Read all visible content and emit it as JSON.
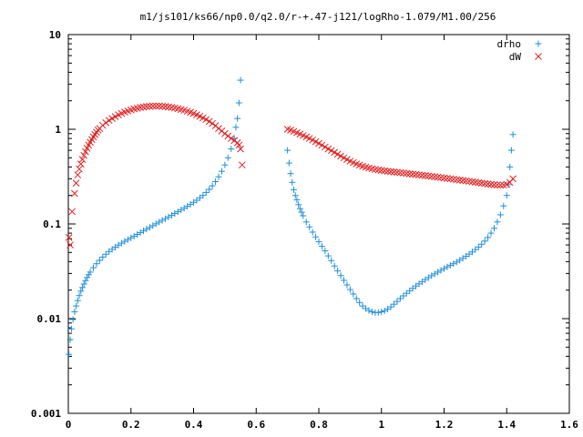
{
  "chart_data": {
    "type": "scatter",
    "title": "m1/js101/ks66/np0.0/q2.0/r-+.47-j121/logRho-1.079/M1.00/256",
    "xlabel": "",
    "ylabel": "",
    "xlim": [
      0,
      1.6
    ],
    "ylim": [
      0.001,
      10
    ],
    "y_scale": "log",
    "grid": false,
    "legend_position": "top-right",
    "x_ticks": [
      "0",
      "0.2",
      "0.4",
      "0.6",
      "0.8",
      "1",
      "1.2",
      "1.4",
      "1.6"
    ],
    "x_tick_values": [
      0,
      0.2,
      0.4,
      0.6,
      0.8,
      1.0,
      1.2,
      1.4,
      1.6
    ],
    "y_ticks": [
      "0.001",
      "0.01",
      "0.1",
      "1",
      "10"
    ],
    "y_tick_values": [
      0.001,
      0.01,
      0.1,
      1,
      10
    ],
    "series": [
      {
        "name": "drho",
        "marker": "plus",
        "color": "#1f8fd9",
        "points": [
          [
            0.002,
            0.0042
          ],
          [
            0.006,
            0.006
          ],
          [
            0.01,
            0.0078
          ],
          [
            0.015,
            0.0098
          ],
          [
            0.02,
            0.0118
          ],
          [
            0.025,
            0.0136
          ],
          [
            0.03,
            0.0155
          ],
          [
            0.035,
            0.0175
          ],
          [
            0.04,
            0.0195
          ],
          [
            0.045,
            0.0213
          ],
          [
            0.05,
            0.0232
          ],
          [
            0.055,
            0.0252
          ],
          [
            0.06,
            0.0272
          ],
          [
            0.065,
            0.0291
          ],
          [
            0.07,
            0.031
          ],
          [
            0.08,
            0.0345
          ],
          [
            0.09,
            0.038
          ],
          [
            0.1,
            0.0413
          ],
          [
            0.11,
            0.0447
          ],
          [
            0.12,
            0.0479
          ],
          [
            0.13,
            0.0511
          ],
          [
            0.14,
            0.054
          ],
          [
            0.15,
            0.0569
          ],
          [
            0.16,
            0.0598
          ],
          [
            0.17,
            0.0627
          ],
          [
            0.18,
            0.0655
          ],
          [
            0.19,
            0.0683
          ],
          [
            0.2,
            0.0713
          ],
          [
            0.21,
            0.0743
          ],
          [
            0.22,
            0.0775
          ],
          [
            0.23,
            0.0809
          ],
          [
            0.24,
            0.0845
          ],
          [
            0.25,
            0.0882
          ],
          [
            0.26,
            0.092
          ],
          [
            0.27,
            0.0961
          ],
          [
            0.28,
            0.1003
          ],
          [
            0.29,
            0.1046
          ],
          [
            0.3,
            0.1091
          ],
          [
            0.31,
            0.1138
          ],
          [
            0.32,
            0.1186
          ],
          [
            0.33,
            0.1236
          ],
          [
            0.34,
            0.1289
          ],
          [
            0.35,
            0.1346
          ],
          [
            0.36,
            0.1406
          ],
          [
            0.37,
            0.147
          ],
          [
            0.38,
            0.1536
          ],
          [
            0.39,
            0.1608
          ],
          [
            0.4,
            0.169
          ],
          [
            0.41,
            0.178
          ],
          [
            0.42,
            0.189
          ],
          [
            0.43,
            0.2
          ],
          [
            0.44,
            0.215
          ],
          [
            0.45,
            0.232
          ],
          [
            0.46,
            0.253
          ],
          [
            0.47,
            0.28
          ],
          [
            0.48,
            0.315
          ],
          [
            0.49,
            0.36
          ],
          [
            0.5,
            0.42
          ],
          [
            0.51,
            0.5
          ],
          [
            0.52,
            0.62
          ],
          [
            0.53,
            0.8
          ],
          [
            0.535,
            1.05
          ],
          [
            0.54,
            1.3
          ],
          [
            0.545,
            1.9
          ],
          [
            0.55,
            3.3
          ],
          [
            0.7,
            0.6
          ],
          [
            0.705,
            0.44
          ],
          [
            0.71,
            0.34
          ],
          [
            0.715,
            0.275
          ],
          [
            0.72,
            0.23
          ],
          [
            0.725,
            0.2
          ],
          [
            0.73,
            0.18
          ],
          [
            0.735,
            0.16
          ],
          [
            0.74,
            0.145
          ],
          [
            0.745,
            0.133
          ],
          [
            0.75,
            0.122
          ],
          [
            0.76,
            0.105
          ],
          [
            0.77,
            0.093
          ],
          [
            0.78,
            0.082
          ],
          [
            0.79,
            0.073
          ],
          [
            0.8,
            0.065
          ],
          [
            0.81,
            0.058
          ],
          [
            0.82,
            0.052
          ],
          [
            0.83,
            0.046
          ],
          [
            0.84,
            0.041
          ],
          [
            0.85,
            0.036
          ],
          [
            0.86,
            0.032
          ],
          [
            0.87,
            0.0285
          ],
          [
            0.88,
            0.0254
          ],
          [
            0.89,
            0.0227
          ],
          [
            0.9,
            0.0203
          ],
          [
            0.91,
            0.0182
          ],
          [
            0.92,
            0.0163
          ],
          [
            0.93,
            0.0148
          ],
          [
            0.94,
            0.0136
          ],
          [
            0.95,
            0.0128
          ],
          [
            0.96,
            0.0122
          ],
          [
            0.97,
            0.0118
          ],
          [
            0.98,
            0.0116
          ],
          [
            0.99,
            0.0116
          ],
          [
            1.0,
            0.0118
          ],
          [
            1.01,
            0.0121
          ],
          [
            1.02,
            0.0126
          ],
          [
            1.03,
            0.0133
          ],
          [
            1.04,
            0.0142
          ],
          [
            1.05,
            0.0152
          ],
          [
            1.06,
            0.0163
          ],
          [
            1.07,
            0.0174
          ],
          [
            1.08,
            0.0185
          ],
          [
            1.09,
            0.0197
          ],
          [
            1.1,
            0.0209
          ],
          [
            1.11,
            0.0221
          ],
          [
            1.12,
            0.0233
          ],
          [
            1.13,
            0.0245
          ],
          [
            1.14,
            0.0258
          ],
          [
            1.15,
            0.0271
          ],
          [
            1.16,
            0.0284
          ],
          [
            1.17,
            0.0297
          ],
          [
            1.18,
            0.031
          ],
          [
            1.19,
            0.0324
          ],
          [
            1.2,
            0.0338
          ],
          [
            1.21,
            0.0352
          ],
          [
            1.22,
            0.0366
          ],
          [
            1.23,
            0.038
          ],
          [
            1.24,
            0.0396
          ],
          [
            1.25,
            0.0414
          ],
          [
            1.26,
            0.0434
          ],
          [
            1.27,
            0.0456
          ],
          [
            1.28,
            0.048
          ],
          [
            1.29,
            0.0506
          ],
          [
            1.3,
            0.0537
          ],
          [
            1.31,
            0.057
          ],
          [
            1.32,
            0.061
          ],
          [
            1.33,
            0.066
          ],
          [
            1.34,
            0.072
          ],
          [
            1.35,
            0.08
          ],
          [
            1.36,
            0.09
          ],
          [
            1.37,
            0.105
          ],
          [
            1.38,
            0.125
          ],
          [
            1.39,
            0.155
          ],
          [
            1.4,
            0.2
          ],
          [
            1.405,
            0.26
          ],
          [
            1.41,
            0.4
          ],
          [
            1.415,
            0.6
          ],
          [
            1.42,
            0.88
          ]
        ]
      },
      {
        "name": "dW",
        "marker": "cross",
        "color": "#e02020",
        "points": [
          [
            0.002,
            0.072
          ],
          [
            0.006,
            0.06
          ],
          [
            0.012,
            0.135
          ],
          [
            0.02,
            0.21
          ],
          [
            0.025,
            0.27
          ],
          [
            0.03,
            0.33
          ],
          [
            0.035,
            0.38
          ],
          [
            0.04,
            0.43
          ],
          [
            0.045,
            0.48
          ],
          [
            0.05,
            0.53
          ],
          [
            0.055,
            0.58
          ],
          [
            0.06,
            0.63
          ],
          [
            0.065,
            0.68
          ],
          [
            0.07,
            0.73
          ],
          [
            0.075,
            0.78
          ],
          [
            0.08,
            0.83
          ],
          [
            0.085,
            0.88
          ],
          [
            0.09,
            0.93
          ],
          [
            0.095,
            0.98
          ],
          [
            0.1,
            1.02
          ],
          [
            0.11,
            1.1
          ],
          [
            0.12,
            1.17
          ],
          [
            0.13,
            1.24
          ],
          [
            0.14,
            1.3
          ],
          [
            0.15,
            1.36
          ],
          [
            0.16,
            1.42
          ],
          [
            0.17,
            1.47
          ],
          [
            0.18,
            1.52
          ],
          [
            0.19,
            1.56
          ],
          [
            0.2,
            1.6
          ],
          [
            0.21,
            1.64
          ],
          [
            0.22,
            1.67
          ],
          [
            0.23,
            1.7
          ],
          [
            0.24,
            1.72
          ],
          [
            0.25,
            1.74
          ],
          [
            0.26,
            1.75
          ],
          [
            0.27,
            1.76
          ],
          [
            0.28,
            1.76
          ],
          [
            0.29,
            1.76
          ],
          [
            0.3,
            1.75
          ],
          [
            0.31,
            1.74
          ],
          [
            0.32,
            1.72
          ],
          [
            0.33,
            1.7
          ],
          [
            0.34,
            1.68
          ],
          [
            0.35,
            1.65
          ],
          [
            0.36,
            1.62
          ],
          [
            0.37,
            1.59
          ],
          [
            0.38,
            1.55
          ],
          [
            0.39,
            1.51
          ],
          [
            0.4,
            1.47
          ],
          [
            0.41,
            1.42
          ],
          [
            0.42,
            1.37
          ],
          [
            0.43,
            1.32
          ],
          [
            0.44,
            1.27
          ],
          [
            0.45,
            1.21
          ],
          [
            0.46,
            1.15
          ],
          [
            0.47,
            1.09
          ],
          [
            0.48,
            1.02
          ],
          [
            0.49,
            0.96
          ],
          [
            0.5,
            0.9
          ],
          [
            0.51,
            0.85
          ],
          [
            0.52,
            0.8
          ],
          [
            0.53,
            0.76
          ],
          [
            0.54,
            0.72
          ],
          [
            0.545,
            0.68
          ],
          [
            0.55,
            0.62
          ],
          [
            0.555,
            0.42
          ],
          [
            0.7,
            1.0
          ],
          [
            0.71,
            0.98
          ],
          [
            0.72,
            0.95
          ],
          [
            0.73,
            0.92
          ],
          [
            0.74,
            0.89
          ],
          [
            0.75,
            0.86
          ],
          [
            0.76,
            0.83
          ],
          [
            0.77,
            0.8
          ],
          [
            0.78,
            0.77
          ],
          [
            0.79,
            0.74
          ],
          [
            0.8,
            0.71
          ],
          [
            0.81,
            0.68
          ],
          [
            0.82,
            0.65
          ],
          [
            0.83,
            0.62
          ],
          [
            0.84,
            0.595
          ],
          [
            0.85,
            0.57
          ],
          [
            0.86,
            0.545
          ],
          [
            0.87,
            0.52
          ],
          [
            0.88,
            0.5
          ],
          [
            0.89,
            0.48
          ],
          [
            0.9,
            0.46
          ],
          [
            0.91,
            0.445
          ],
          [
            0.92,
            0.43
          ],
          [
            0.93,
            0.418
          ],
          [
            0.94,
            0.407
          ],
          [
            0.95,
            0.398
          ],
          [
            0.96,
            0.39
          ],
          [
            0.97,
            0.383
          ],
          [
            0.98,
            0.377
          ],
          [
            0.99,
            0.372
          ],
          [
            1.0,
            0.368
          ],
          [
            1.01,
            0.364
          ],
          [
            1.02,
            0.36
          ],
          [
            1.03,
            0.357
          ],
          [
            1.04,
            0.354
          ],
          [
            1.05,
            0.351
          ],
          [
            1.06,
            0.348
          ],
          [
            1.07,
            0.345
          ],
          [
            1.08,
            0.342
          ],
          [
            1.09,
            0.339
          ],
          [
            1.1,
            0.336
          ],
          [
            1.11,
            0.333
          ],
          [
            1.12,
            0.33
          ],
          [
            1.13,
            0.327
          ],
          [
            1.14,
            0.324
          ],
          [
            1.15,
            0.321
          ],
          [
            1.16,
            0.318
          ],
          [
            1.17,
            0.315
          ],
          [
            1.18,
            0.312
          ],
          [
            1.19,
            0.309
          ],
          [
            1.2,
            0.306
          ],
          [
            1.21,
            0.303
          ],
          [
            1.22,
            0.3
          ],
          [
            1.23,
            0.297
          ],
          [
            1.24,
            0.294
          ],
          [
            1.25,
            0.291
          ],
          [
            1.26,
            0.288
          ],
          [
            1.27,
            0.285
          ],
          [
            1.28,
            0.282
          ],
          [
            1.29,
            0.279
          ],
          [
            1.3,
            0.276
          ],
          [
            1.31,
            0.273
          ],
          [
            1.32,
            0.27
          ],
          [
            1.33,
            0.267
          ],
          [
            1.34,
            0.264
          ],
          [
            1.35,
            0.262
          ],
          [
            1.36,
            0.26
          ],
          [
            1.37,
            0.258
          ],
          [
            1.38,
            0.257
          ],
          [
            1.39,
            0.258
          ],
          [
            1.4,
            0.262
          ],
          [
            1.41,
            0.275
          ],
          [
            1.42,
            0.3
          ]
        ]
      }
    ]
  }
}
